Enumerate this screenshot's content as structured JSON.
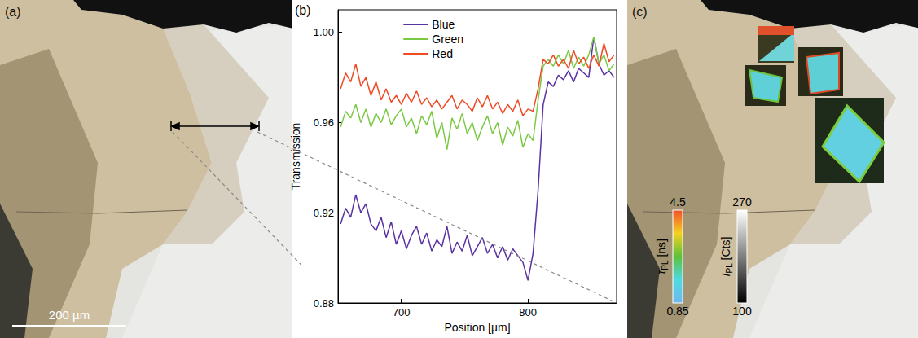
{
  "panel_a": {
    "label": "(a)",
    "scale_bar": "200 µm"
  },
  "chart_data": {
    "type": "line",
    "title": "(b)",
    "x_label": "Position [µm]",
    "y_label": "Transmission",
    "x": [
      652,
      656,
      660,
      664,
      668,
      672,
      676,
      680,
      684,
      688,
      692,
      696,
      700,
      704,
      708,
      712,
      716,
      720,
      724,
      728,
      732,
      736,
      740,
      744,
      748,
      752,
      756,
      760,
      764,
      768,
      772,
      776,
      780,
      784,
      788,
      792,
      796,
      800,
      804,
      808,
      812,
      816,
      820,
      824,
      828,
      832,
      836,
      840,
      844,
      848,
      852,
      856,
      860,
      864,
      868
    ],
    "series": [
      {
        "name": "Blue",
        "color": "#5a32a3",
        "values": [
          0.915,
          0.922,
          0.918,
          0.928,
          0.92,
          0.924,
          0.915,
          0.912,
          0.918,
          0.909,
          0.916,
          0.906,
          0.912,
          0.904,
          0.91,
          0.914,
          0.906,
          0.911,
          0.903,
          0.908,
          0.905,
          0.914,
          0.902,
          0.907,
          0.903,
          0.91,
          0.901,
          0.905,
          0.909,
          0.902,
          0.906,
          0.9,
          0.905,
          0.899,
          0.904,
          0.901,
          0.898,
          0.89,
          0.902,
          0.93,
          0.968,
          0.978,
          0.976,
          0.981,
          0.979,
          0.983,
          0.978,
          0.984,
          0.982,
          0.98,
          0.998,
          0.986,
          0.981,
          0.983,
          0.98
        ]
      },
      {
        "name": "Green",
        "color": "#7ac943",
        "values": [
          0.958,
          0.965,
          0.962,
          0.968,
          0.96,
          0.966,
          0.958,
          0.964,
          0.96,
          0.966,
          0.959,
          0.963,
          0.966,
          0.958,
          0.962,
          0.955,
          0.963,
          0.959,
          0.965,
          0.953,
          0.96,
          0.948,
          0.962,
          0.957,
          0.964,
          0.955,
          0.96,
          0.952,
          0.958,
          0.963,
          0.955,
          0.96,
          0.95,
          0.958,
          0.954,
          0.961,
          0.949,
          0.955,
          0.952,
          0.97,
          0.985,
          0.988,
          0.985,
          0.99,
          0.986,
          0.992,
          0.984,
          0.989,
          0.985,
          0.99,
          0.998,
          0.986,
          0.99,
          0.983,
          0.986
        ]
      },
      {
        "name": "Red",
        "color": "#ef4a24",
        "values": [
          0.975,
          0.982,
          0.978,
          0.986,
          0.976,
          0.98,
          0.972,
          0.978,
          0.97,
          0.975,
          0.969,
          0.972,
          0.968,
          0.973,
          0.969,
          0.974,
          0.968,
          0.971,
          0.967,
          0.97,
          0.966,
          0.969,
          0.972,
          0.966,
          0.97,
          0.968,
          0.965,
          0.971,
          0.967,
          0.972,
          0.966,
          0.969,
          0.964,
          0.968,
          0.965,
          0.97,
          0.963,
          0.966,
          0.965,
          0.975,
          0.988,
          0.986,
          0.99,
          0.985,
          0.988,
          0.984,
          0.992,
          0.986,
          0.989,
          0.984,
          0.99,
          0.985,
          0.995,
          0.987,
          0.99
        ]
      }
    ],
    "xlim": [
      650,
      870
    ],
    "xticks": [
      700,
      800
    ],
    "ylim": [
      0.88,
      1.01
    ],
    "yticks": [
      0.88,
      0.92,
      0.96,
      {
        "value": 1,
        "label": "1.00"
      }
    ],
    "legend": "top",
    "grid": false
  },
  "panel_c": {
    "label": "(c)",
    "colorbars": [
      {
        "title": {
          "symbol": "τ",
          "subscript": "PL",
          "unit": "[ns]"
        },
        "range": [
          0.85,
          4.5
        ],
        "ticks": [
          0.85,
          4.5
        ]
      },
      {
        "title": {
          "symbol": "I",
          "subscript": "PL",
          "unit": "[Cts]"
        },
        "range": [
          100,
          270
        ],
        "ticks": [
          100,
          270
        ]
      }
    ]
  }
}
